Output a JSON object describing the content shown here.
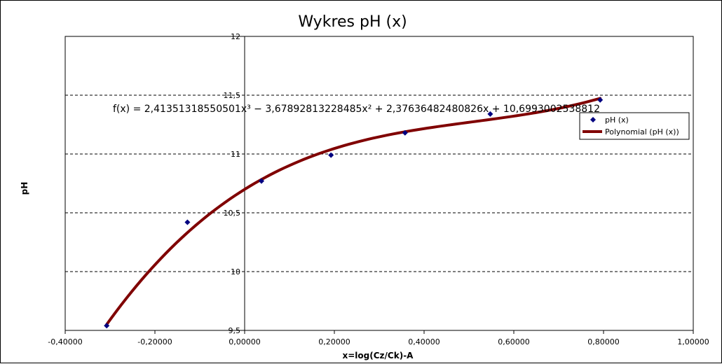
{
  "chart_data": {
    "type": "scatter",
    "title": "Wykres pH (x)",
    "xlabel": "x=log(Cz/Ck)-A",
    "ylabel": "pH",
    "xlim": [
      -0.4,
      1.0
    ],
    "ylim": [
      9.5,
      12
    ],
    "x_ticks": [
      -0.4,
      -0.2,
      0.0,
      0.2,
      0.4,
      0.6,
      0.8,
      1.0
    ],
    "x_tick_labels": [
      "-0,40000",
      "-0,20000",
      "0,00000",
      "0,20000",
      "0,40000",
      "0,60000",
      "0,80000",
      "1,00000"
    ],
    "y_ticks": [
      9.5,
      10,
      10.5,
      11,
      11.5,
      12
    ],
    "y_tick_labels": [
      "9,5",
      "10",
      "10,5",
      "11",
      "11,5",
      "12"
    ],
    "grid": "horizontal dashed",
    "series": [
      {
        "name": "pH (x)",
        "kind": "points",
        "color": "#000080",
        "x": [
          -0.3075,
          -0.1275,
          0.0375,
          0.1925,
          0.3575,
          0.5475,
          0.7925
        ],
        "y": [
          9.54,
          10.42,
          10.77,
          10.99,
          11.18,
          11.34,
          11.46
        ]
      },
      {
        "name": "Polynomial (pH (x))",
        "kind": "trendline",
        "color": "#800000",
        "coefficients": [
          2.41351318550501,
          -3.67892813228485,
          2.37636482480826,
          10.6993002538812
        ],
        "x_range": [
          -0.3075,
          0.7925
        ]
      }
    ],
    "equation": "f(x) = 2,41351318550501x³ − 3,67892813228485x² + 2,37636482480826x + 10,6993002538812",
    "legend_position": "right"
  }
}
